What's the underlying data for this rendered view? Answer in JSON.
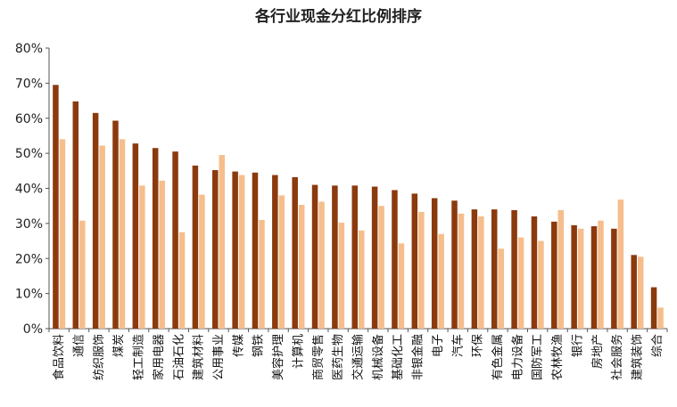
{
  "chart_data": {
    "type": "bar",
    "title": "各行业现金分红比例排序",
    "xlabel": "",
    "ylabel": "",
    "ylim": [
      0,
      80
    ],
    "y_unit": "%",
    "yticks": [
      "0%",
      "10%",
      "20%",
      "30%",
      "40%",
      "50%",
      "60%",
      "70%",
      "80%"
    ],
    "grid": false,
    "legend": "none",
    "categories": [
      "食品饮料",
      "通信",
      "纺织服饰",
      "煤炭",
      "轻工制造",
      "家用电器",
      "石油石化",
      "建筑材料",
      "公用事业",
      "传媒",
      "钢铁",
      "美容护理",
      "计算机",
      "商贸零售",
      "医药生物",
      "交通运输",
      "机械设备",
      "基础化工",
      "非银金融",
      "电子",
      "汽车",
      "环保",
      "有色金属",
      "电力设备",
      "国防军工",
      "农林牧渔",
      "银行",
      "房地产",
      "社会服务",
      "建筑装饰",
      "综合"
    ],
    "series": [
      {
        "color": "#8B3A0E",
        "values": [
          69.5,
          64.8,
          61.5,
          59.3,
          52.8,
          51.5,
          50.5,
          46.5,
          45.2,
          44.8,
          44.5,
          43.8,
          43.2,
          41.0,
          40.8,
          40.8,
          40.5,
          39.5,
          38.5,
          37.2,
          36.5,
          34.0,
          34.0,
          33.8,
          32.0,
          30.5,
          29.5,
          29.2,
          28.5,
          21.0,
          11.8
        ]
      },
      {
        "color": "#F5BE8C",
        "values": [
          54.0,
          30.8,
          52.2,
          54.0,
          40.8,
          42.2,
          27.5,
          38.2,
          49.5,
          43.8,
          31.0,
          38.0,
          35.3,
          36.2,
          30.2,
          28.0,
          35.0,
          24.3,
          33.3,
          27.0,
          32.8,
          32.0,
          22.8,
          26.0,
          25.0,
          33.8,
          28.5,
          30.8,
          36.8,
          20.5,
          6.0
        ]
      }
    ]
  }
}
